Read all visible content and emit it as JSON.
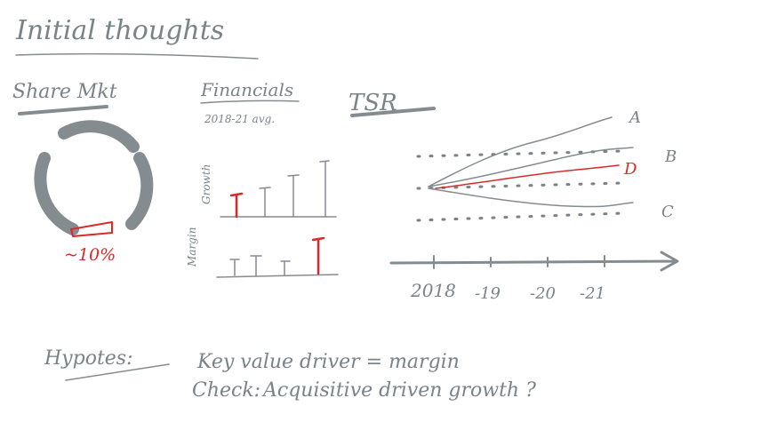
{
  "title": "Initial thoughts",
  "sections": {
    "share": {
      "heading": "Share Mkt",
      "share_label": "~10%",
      "share_value": 0.1
    },
    "financials": {
      "heading": "Financials",
      "period": "2018-21 avg.",
      "y_label_growth": "Growth",
      "y_label_margin": "Margin"
    },
    "tsr": {
      "heading": "TSR",
      "series_labels": [
        "A",
        "B",
        "D",
        "C"
      ],
      "x_ticks": [
        "2018",
        "-19",
        "-20",
        "-21"
      ]
    }
  },
  "notes": {
    "hypothesis_label": "Hypotes:",
    "hypothesis_text": "Key value driver = margin",
    "check_label": "Check:",
    "check_text": "Acquisitive driven growth ?"
  },
  "colors": {
    "ink": "#858c90",
    "highlight": "#d92a2a"
  }
}
